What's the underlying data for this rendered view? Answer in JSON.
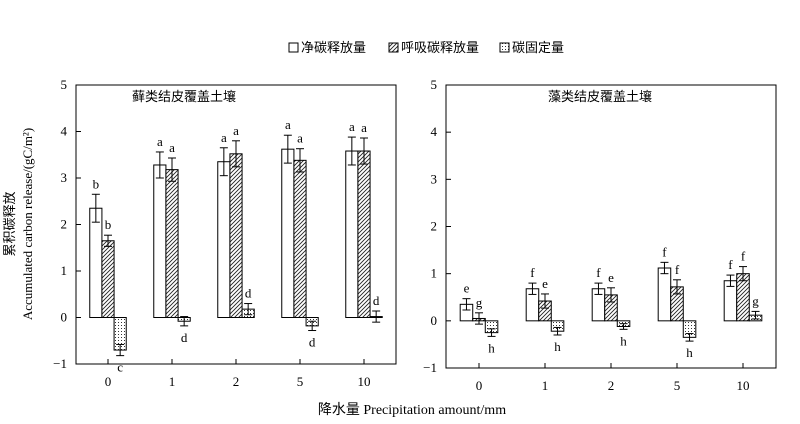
{
  "legend": {
    "items": [
      {
        "label": "净碳释放量",
        "pattern": "blank"
      },
      {
        "label": "呼吸碳释放量",
        "pattern": "hatch"
      },
      {
        "label": "碳固定量",
        "pattern": "dots"
      }
    ]
  },
  "y_title_cn": "累积碳释放",
  "y_title_en": "Accumulated carbon release/(gC/m²)",
  "x_title": "降水量 Precipitation amount/mm",
  "chart_data": [
    {
      "type": "bar",
      "title": "藓类结皮覆盖土壤",
      "categories": [
        "0",
        "1",
        "2",
        "5",
        "10"
      ],
      "ylim": [
        -1,
        5
      ],
      "yticks": [
        -1,
        0,
        1,
        2,
        3,
        4,
        5
      ],
      "ytick_labels": [
        "−1",
        "0",
        "1",
        "2",
        "3",
        "4",
        "5"
      ],
      "series": [
        {
          "name": "净碳释放量",
          "pattern": "blank",
          "values": [
            2.35,
            3.28,
            3.35,
            3.62,
            3.58
          ],
          "errors": [
            0.3,
            0.28,
            0.3,
            0.3,
            0.3
          ],
          "letters": [
            "b",
            "a",
            "a",
            "a",
            "a"
          ]
        },
        {
          "name": "呼吸碳释放量",
          "pattern": "hatch",
          "values": [
            1.65,
            3.18,
            3.52,
            3.38,
            3.58
          ],
          "errors": [
            0.12,
            0.25,
            0.28,
            0.25,
            0.28
          ],
          "letters": [
            "b",
            "a",
            "a",
            "a",
            "a"
          ]
        },
        {
          "name": "碳固定量",
          "pattern": "dots",
          "values": [
            -0.7,
            -0.08,
            0.18,
            -0.18,
            0.02
          ],
          "errors": [
            0.12,
            0.1,
            0.12,
            0.1,
            0.12
          ],
          "letters": [
            "c",
            "d",
            "d",
            "d",
            "d"
          ]
        }
      ]
    },
    {
      "type": "bar",
      "title": "藻类结皮覆盖土壤",
      "categories": [
        "0",
        "1",
        "2",
        "5",
        "10"
      ],
      "ylim": [
        -1,
        5
      ],
      "yticks": [
        -1,
        0,
        1,
        2,
        3,
        4,
        5
      ],
      "ytick_labels": [
        "−1",
        "0",
        "1",
        "2",
        "3",
        "4",
        "5"
      ],
      "series": [
        {
          "name": "净碳释放量",
          "pattern": "blank",
          "values": [
            0.35,
            0.68,
            0.68,
            1.12,
            0.85
          ],
          "errors": [
            0.12,
            0.12,
            0.12,
            0.12,
            0.12
          ],
          "letters": [
            "e",
            "f",
            "f",
            "f",
            "f"
          ]
        },
        {
          "name": "呼吸碳释放量",
          "pattern": "hatch",
          "values": [
            0.05,
            0.42,
            0.55,
            0.72,
            1.0
          ],
          "errors": [
            0.12,
            0.15,
            0.15,
            0.15,
            0.15
          ],
          "letters": [
            "g",
            "e",
            "e",
            "f",
            "f"
          ]
        },
        {
          "name": "碳固定量",
          "pattern": "dots",
          "values": [
            -0.25,
            -0.22,
            -0.12,
            -0.35,
            0.12
          ],
          "errors": [
            0.08,
            0.08,
            0.06,
            0.08,
            0.08
          ],
          "letters": [
            "h",
            "h",
            "h",
            "h",
            "g"
          ]
        }
      ]
    }
  ]
}
